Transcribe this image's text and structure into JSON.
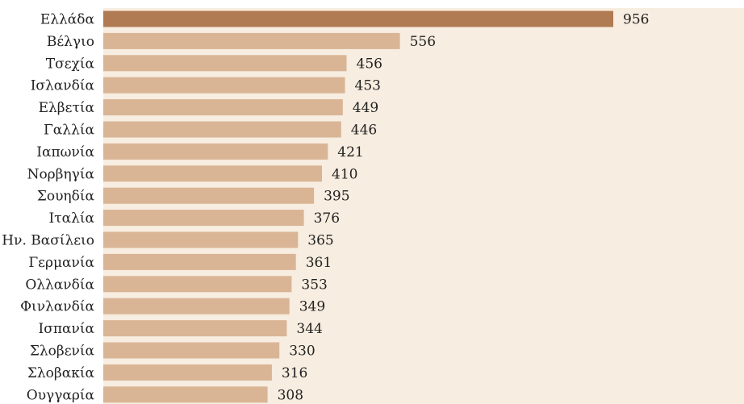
{
  "chart_data": {
    "type": "bar",
    "orientation": "horizontal",
    "categories": [
      "Ελλάδα",
      "Βέλγιο",
      "Τσεχία",
      "Ισλανδία",
      "Ελβετία",
      "Γαλλία",
      "Ιαπωνία",
      "Νορβηγία",
      "Σουηδία",
      "Ιταλία",
      "Ην. Βασίλειο",
      "Γερμανία",
      "Ολλανδία",
      "Φινλανδία",
      "Ισπανία",
      "Σλοβενία",
      "Σλοβακία",
      "Ουγγαρία"
    ],
    "values": [
      956,
      556,
      456,
      453,
      449,
      446,
      421,
      410,
      395,
      376,
      365,
      361,
      353,
      349,
      344,
      330,
      316,
      308
    ],
    "value_labels": [
      "956",
      "556",
      "456",
      "453",
      "449",
      "446",
      "421",
      "410",
      "395",
      "376",
      "365",
      "361",
      "353",
      "349",
      "344",
      "330",
      "316",
      "308"
    ],
    "title": "",
    "xlabel": "",
    "ylabel": "",
    "xlim": [
      0,
      1250
    ],
    "grid": false,
    "legend": "none",
    "colors": {
      "background_panel": "#f7ede0",
      "highlight_bar": "#b07a53",
      "bar": "#d9b596"
    }
  }
}
